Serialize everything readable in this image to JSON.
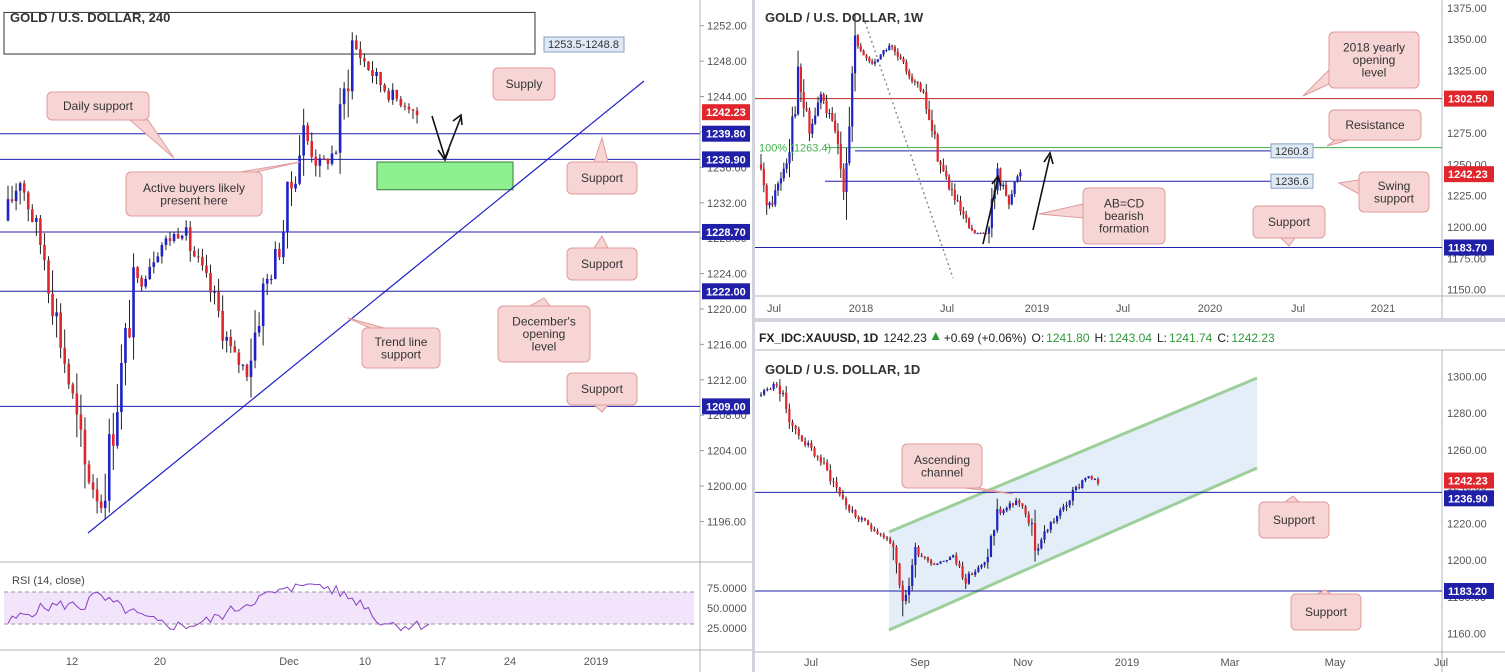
{
  "chart_data": [
    {
      "type": "candlestick",
      "title": "GOLD / U.S. DOLLAR, 240",
      "y_ticks": [
        "1252.00",
        "1248.00",
        "1244.00",
        "1240.00",
        "1236.00",
        "1232.00",
        "1228.00",
        "1224.00",
        "1220.00",
        "1216.00",
        "1212.00",
        "1208.00",
        "1204.00",
        "1200.00",
        "1196.00"
      ],
      "x_ticks": [
        "12",
        "20",
        "Dec",
        "10",
        "17",
        "24",
        "2019"
      ],
      "ylim": [
        1193,
        1254
      ],
      "price_labels": [
        {
          "text": "1242.23",
          "value": 1242.23,
          "color": "#e0262c"
        },
        {
          "text": "1239.80",
          "value": 1239.8,
          "color": "#1f1fa8"
        },
        {
          "text": "1236.90",
          "value": 1236.9,
          "color": "#1f1fa8"
        },
        {
          "text": "1228.70",
          "value": 1228.7,
          "color": "#1f1fa8"
        },
        {
          "text": "1222.00",
          "value": 1222.0,
          "color": "#1f1fa8"
        },
        {
          "text": "1209.00",
          "value": 1209.0,
          "color": "#1f1fa8"
        }
      ],
      "horizontal_lines": [
        1239.8,
        1236.9,
        1228.7,
        1222.0,
        1209.0
      ],
      "zones": [
        {
          "name": "supply",
          "range": "1253.5-1248.8",
          "top": 1253.5,
          "bottom": 1248.8
        },
        {
          "name": "demand",
          "top": 1236.6,
          "bottom": 1234.6
        }
      ],
      "annotations": [
        "Supply",
        "Daily support",
        "Active buyers likely",
        "present here",
        "Support",
        "Support",
        "December's",
        "opening",
        "level",
        "Trend line",
        "support",
        "Support"
      ],
      "rsi": {
        "label": "RSI (14, close)",
        "ticks": [
          "75.0000",
          "50.0000",
          "25.0000"
        ],
        "upper": 70,
        "lower": 30
      }
    },
    {
      "type": "candlestick",
      "title": "GOLD / U.S. DOLLAR, 1W",
      "y_ticks": [
        "1375.00",
        "1350.00",
        "1325.00",
        "1300.00",
        "1275.00",
        "1250.00",
        "1225.00",
        "1200.00",
        "1175.00",
        "1150.00"
      ],
      "x_ticks": [
        "Jul",
        "2018",
        "Jul",
        "2019",
        "Jul",
        "2020",
        "Jul",
        "2021"
      ],
      "ylim": [
        1145,
        1378
      ],
      "price_labels": [
        {
          "text": "1302.50",
          "value": 1302.5,
          "color": "#e0262c"
        },
        {
          "text": "1242.23",
          "value": 1242.23,
          "color": "#e0262c"
        },
        {
          "text": "1183.70",
          "value": 1183.7,
          "color": "#1f1fa8"
        }
      ],
      "box_labels": [
        {
          "text": "1260.8",
          "value": 1260.8
        },
        {
          "text": "1236.6",
          "value": 1236.6
        }
      ],
      "fib_label": "100% (1263.4)",
      "annotations": [
        "2018 yearly",
        "opening",
        "level",
        "Resistance",
        "Swing",
        "support",
        "AB=CD",
        "bearish",
        "formation",
        "Support"
      ]
    },
    {
      "type": "candlestick",
      "title": "GOLD / U.S. DOLLAR, 1D",
      "header": {
        "symbol": "FX_IDC:XAUUSD, 1D",
        "last": "1242.23",
        "change": "+0.69 (+0.06%)",
        "o_label": "O:",
        "o": "1241.80",
        "h_label": "H:",
        "h": "1243.04",
        "l_label": "L:",
        "l": "1241.74",
        "c_label": "C:",
        "c": "1242.23"
      },
      "y_ticks": [
        "1300.00",
        "1280.00",
        "1260.00",
        "1240.00",
        "1220.00",
        "1200.00",
        "1180.00",
        "1160.00"
      ],
      "x_ticks": [
        "Jul",
        "Sep",
        "Nov",
        "2019",
        "Mar",
        "May",
        "Jul"
      ],
      "ylim": [
        1150,
        1310
      ],
      "price_labels": [
        {
          "text": "1242.23",
          "value": 1242.23,
          "color": "#e0262c"
        },
        {
          "text": "1236.90",
          "value": 1236.9,
          "color": "#1f1fa8"
        },
        {
          "text": "1183.20",
          "value": 1183.2,
          "color": "#1f1fa8"
        }
      ],
      "annotations": [
        "Ascending",
        "channel",
        "Support",
        "Support"
      ]
    }
  ]
}
